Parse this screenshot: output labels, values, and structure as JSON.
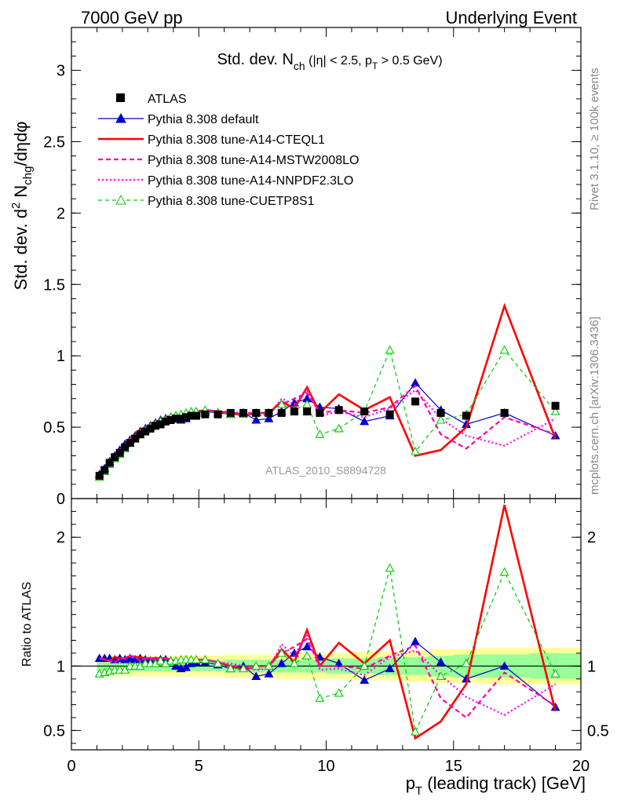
{
  "header": {
    "left": "7000 GeV pp",
    "right": "Underlying Event"
  },
  "side_labels": {
    "rivet": "Rivet 3.1.10, ≥ 100k events",
    "mcplots": "mcplots.cern.ch [arXiv:1306.3436]"
  },
  "watermark": "ATLAS_2010_S8894728",
  "chart_data": [
    {
      "panel": "main",
      "type": "line",
      "title_parts": {
        "std": "Std. dev. N",
        "sub": "ch",
        "rest": " (|η| < 2.5, p",
        "sub2": "T",
        "rest2": " > 0.5 GeV)"
      },
      "ylabel_parts": {
        "a": "Std. dev. d",
        "sup": "2",
        "b": " N",
        "sub": "chg",
        "c": "/dηdφ"
      },
      "xlim": [
        0,
        20
      ],
      "ylim": [
        0,
        3.3
      ],
      "yticks": [
        0,
        0.5,
        1,
        1.5,
        2,
        2.5,
        3
      ],
      "ytick_labels": [
        "0",
        "0.5",
        "1",
        "1.5",
        "2",
        "2.5",
        "3"
      ],
      "legend_position": "top-left",
      "series": [
        {
          "name": "ATLAS",
          "color": "#000000",
          "style": "marker",
          "x": [
            1.1,
            1.3,
            1.5,
            1.7,
            1.9,
            2.1,
            2.3,
            2.5,
            2.7,
            2.9,
            3.1,
            3.3,
            3.5,
            3.7,
            3.9,
            4.1,
            4.3,
            4.5,
            4.7,
            4.9,
            5.25,
            5.75,
            6.25,
            6.75,
            7.25,
            7.75,
            8.25,
            8.75,
            9.25,
            9.75,
            10.5,
            11.5,
            12.5,
            13.5,
            14.5,
            15.5,
            17.0,
            19.0
          ],
          "y": [
            0.16,
            0.2,
            0.25,
            0.29,
            0.32,
            0.36,
            0.39,
            0.42,
            0.45,
            0.47,
            0.49,
            0.51,
            0.52,
            0.54,
            0.55,
            0.56,
            0.56,
            0.57,
            0.58,
            0.58,
            0.59,
            0.59,
            0.6,
            0.6,
            0.6,
            0.6,
            0.6,
            0.61,
            0.61,
            0.6,
            0.62,
            0.61,
            0.59,
            0.68,
            0.6,
            0.58,
            0.6,
            0.65
          ]
        },
        {
          "name": "Pythia 8.308 default",
          "color": "#0000cc",
          "style": "solid-triangle",
          "x": [
            1.1,
            1.3,
            1.5,
            1.7,
            1.9,
            2.1,
            2.3,
            2.5,
            2.7,
            2.9,
            3.1,
            3.3,
            3.5,
            3.7,
            3.9,
            4.1,
            4.3,
            4.5,
            4.7,
            4.9,
            5.25,
            5.75,
            6.25,
            6.75,
            7.25,
            7.75,
            8.25,
            8.75,
            9.25,
            9.75,
            10.5,
            11.5,
            12.5,
            13.5,
            14.5,
            15.5,
            17.0,
            19.0
          ],
          "y": [
            0.17,
            0.21,
            0.26,
            0.3,
            0.34,
            0.38,
            0.41,
            0.44,
            0.47,
            0.49,
            0.51,
            0.53,
            0.55,
            0.56,
            0.57,
            0.56,
            0.55,
            0.56,
            0.59,
            0.6,
            0.61,
            0.6,
            0.59,
            0.6,
            0.55,
            0.56,
            0.61,
            0.67,
            0.7,
            0.64,
            0.63,
            0.54,
            0.58,
            0.81,
            0.62,
            0.52,
            0.6,
            0.44
          ]
        },
        {
          "name": "Pythia 8.308 tune-A14-CTEQL1",
          "color": "#ff0000",
          "style": "solid-thick",
          "x": [
            1.1,
            1.3,
            1.5,
            1.7,
            1.9,
            2.1,
            2.3,
            2.5,
            2.7,
            2.9,
            3.1,
            3.3,
            3.5,
            3.7,
            3.9,
            4.1,
            4.3,
            4.5,
            4.7,
            4.9,
            5.25,
            5.75,
            6.25,
            6.75,
            7.25,
            7.75,
            8.25,
            8.75,
            9.25,
            9.75,
            10.5,
            11.5,
            12.5,
            13.5,
            14.5,
            15.5,
            17.0,
            19.0
          ],
          "y": [
            0.17,
            0.21,
            0.26,
            0.31,
            0.34,
            0.38,
            0.42,
            0.45,
            0.48,
            0.5,
            0.52,
            0.54,
            0.55,
            0.57,
            0.58,
            0.58,
            0.58,
            0.6,
            0.6,
            0.61,
            0.62,
            0.61,
            0.6,
            0.58,
            0.6,
            0.6,
            0.68,
            0.63,
            0.78,
            0.6,
            0.73,
            0.62,
            0.71,
            0.3,
            0.34,
            0.5,
            1.35,
            0.42
          ]
        },
        {
          "name": "Pythia 8.308 tune-A14-MSTW2008LO",
          "color": "#ff00aa",
          "style": "dashed",
          "x": [
            1.1,
            1.3,
            1.5,
            1.7,
            1.9,
            2.1,
            2.3,
            2.5,
            2.7,
            2.9,
            3.1,
            3.3,
            3.5,
            3.7,
            3.9,
            4.1,
            4.3,
            4.5,
            4.7,
            4.9,
            5.25,
            5.75,
            6.25,
            6.75,
            7.25,
            7.75,
            8.25,
            8.75,
            9.25,
            9.75,
            10.5,
            11.5,
            12.5,
            13.5,
            14.5,
            15.5,
            17.0,
            19.0
          ],
          "y": [
            0.17,
            0.21,
            0.26,
            0.3,
            0.34,
            0.38,
            0.42,
            0.45,
            0.47,
            0.5,
            0.52,
            0.53,
            0.55,
            0.57,
            0.58,
            0.58,
            0.58,
            0.59,
            0.6,
            0.6,
            0.62,
            0.61,
            0.6,
            0.6,
            0.6,
            0.6,
            0.66,
            0.7,
            0.74,
            0.6,
            0.62,
            0.6,
            0.64,
            0.79,
            0.45,
            0.35,
            0.57,
            0.45
          ]
        },
        {
          "name": "Pythia 8.308 tune-A14-NNPDF2.3LO",
          "color": "#ff00ff",
          "style": "dotted",
          "x": [
            1.1,
            1.3,
            1.5,
            1.7,
            1.9,
            2.1,
            2.3,
            2.5,
            2.7,
            2.9,
            3.1,
            3.3,
            3.5,
            3.7,
            3.9,
            4.1,
            4.3,
            4.5,
            4.7,
            4.9,
            5.25,
            5.75,
            6.25,
            6.75,
            7.25,
            7.75,
            8.25,
            8.75,
            9.25,
            9.75,
            10.5,
            11.5,
            12.5,
            13.5,
            14.5,
            15.5,
            17.0,
            19.0
          ],
          "y": [
            0.17,
            0.21,
            0.26,
            0.3,
            0.34,
            0.38,
            0.42,
            0.45,
            0.47,
            0.5,
            0.52,
            0.54,
            0.55,
            0.57,
            0.58,
            0.58,
            0.58,
            0.59,
            0.6,
            0.61,
            0.62,
            0.61,
            0.61,
            0.6,
            0.58,
            0.59,
            0.7,
            0.66,
            0.76,
            0.58,
            0.61,
            0.57,
            0.63,
            0.76,
            0.56,
            0.44,
            0.37,
            0.56
          ]
        },
        {
          "name": "Pythia 8.308 tune-CUETP8S1",
          "color": "#00cc00",
          "style": "dashed-open-triangle",
          "x": [
            1.1,
            1.3,
            1.5,
            1.7,
            1.9,
            2.1,
            2.3,
            2.5,
            2.7,
            2.9,
            3.1,
            3.3,
            3.5,
            3.7,
            3.9,
            4.1,
            4.3,
            4.5,
            4.7,
            4.9,
            5.25,
            5.75,
            6.25,
            6.75,
            7.25,
            7.75,
            8.25,
            8.75,
            9.25,
            9.75,
            10.5,
            11.5,
            12.5,
            13.5,
            14.5,
            15.5,
            17.0,
            19.0
          ],
          "y": [
            0.15,
            0.19,
            0.24,
            0.28,
            0.31,
            0.35,
            0.39,
            0.42,
            0.45,
            0.48,
            0.5,
            0.52,
            0.54,
            0.55,
            0.57,
            0.58,
            0.59,
            0.6,
            0.61,
            0.61,
            0.62,
            0.6,
            0.59,
            0.59,
            0.6,
            0.6,
            0.66,
            0.62,
            0.66,
            0.45,
            0.49,
            0.61,
            1.04,
            0.33,
            0.55,
            0.59,
            1.04,
            0.61
          ]
        }
      ]
    },
    {
      "panel": "ratio",
      "type": "line",
      "ylabel": "Ratio to ATLAS",
      "xlabel_parts": {
        "a": "p",
        "sub": "T",
        "b": " (leading track) [GeV]"
      },
      "xlim": [
        0,
        20
      ],
      "ylim": [
        0.35,
        2.3
      ],
      "xticks": [
        0,
        5,
        10,
        15,
        20
      ],
      "xtick_labels": [
        "0",
        "5",
        "10",
        "15",
        "20"
      ],
      "yticks": [
        0.5,
        1,
        2
      ],
      "ytick_labels": [
        "0.5",
        "1",
        "2"
      ],
      "reference_line": 1,
      "uncertainty_bands": {
        "x_edges": [
          1.0,
          4.0,
          6.0,
          8.0,
          10.0,
          11.0,
          12.0,
          13.0,
          14.0,
          15.0,
          16.0,
          18.0,
          20.0
        ],
        "stat_half_width": [
          0.04,
          0.04,
          0.05,
          0.05,
          0.06,
          0.06,
          0.07,
          0.07,
          0.08,
          0.09,
          0.09,
          0.1
        ],
        "total_half_width": [
          0.08,
          0.08,
          0.09,
          0.1,
          0.1,
          0.11,
          0.11,
          0.12,
          0.13,
          0.13,
          0.14,
          0.14
        ],
        "stat_color": "#99ff99",
        "total_color": "#ffff99"
      },
      "series": [
        {
          "name": "Pythia 8.308 default",
          "color": "#0000cc",
          "y": [
            1.06,
            1.06,
            1.06,
            1.05,
            1.06,
            1.05,
            1.06,
            1.05,
            1.06,
            1.05,
            1.04,
            1.04,
            1.05,
            1.05,
            1.04,
            1.0,
            0.98,
            0.99,
            1.02,
            1.03,
            1.03,
            1.01,
            0.98,
            1.0,
            0.92,
            0.94,
            1.02,
            1.1,
            1.15,
            1.07,
            1.02,
            0.89,
            0.98,
            1.19,
            1.03,
            0.9,
            1.0,
            0.68
          ]
        },
        {
          "name": "Pythia 8.308 tune-A14-CTEQL1",
          "color": "#ff0000",
          "y": [
            1.06,
            1.05,
            1.04,
            1.07,
            1.06,
            1.06,
            1.08,
            1.07,
            1.07,
            1.06,
            1.06,
            1.06,
            1.06,
            1.06,
            1.05,
            1.04,
            1.04,
            1.05,
            1.03,
            1.05,
            1.05,
            1.03,
            1.0,
            0.97,
            1.0,
            1.0,
            1.13,
            1.03,
            1.28,
            1.0,
            1.18,
            1.02,
            1.2,
            0.44,
            0.57,
            0.86,
            2.25,
            0.65
          ]
        },
        {
          "name": "Pythia 8.308 tune-A14-MSTW2008LO",
          "color": "#ff00aa",
          "y": [
            1.06,
            1.05,
            1.04,
            1.03,
            1.06,
            1.06,
            1.08,
            1.07,
            1.04,
            1.06,
            1.06,
            1.04,
            1.06,
            1.06,
            1.05,
            1.04,
            1.04,
            1.04,
            1.03,
            1.03,
            1.05,
            1.03,
            1.0,
            1.0,
            1.0,
            1.0,
            1.1,
            1.15,
            1.21,
            1.0,
            1.0,
            0.98,
            1.08,
            1.16,
            0.75,
            0.6,
            0.95,
            0.69
          ]
        },
        {
          "name": "Pythia 8.308 tune-A14-NNPDF2.3LO",
          "color": "#ff00ff",
          "y": [
            1.06,
            1.05,
            1.04,
            1.03,
            1.06,
            1.06,
            1.08,
            1.07,
            1.04,
            1.06,
            1.06,
            1.06,
            1.06,
            1.06,
            1.05,
            1.04,
            1.04,
            1.04,
            1.03,
            1.05,
            1.05,
            1.03,
            1.02,
            1.0,
            0.97,
            0.98,
            1.17,
            1.08,
            1.25,
            0.97,
            0.98,
            0.93,
            1.07,
            1.12,
            0.93,
            0.76,
            0.62,
            0.86
          ]
        },
        {
          "name": "Pythia 8.308 tune-CUETP8S1",
          "color": "#00cc00",
          "y": [
            0.94,
            0.95,
            0.96,
            0.97,
            0.97,
            0.97,
            1.0,
            1.0,
            1.0,
            1.02,
            1.02,
            1.02,
            1.04,
            1.02,
            1.04,
            1.04,
            1.05,
            1.05,
            1.05,
            1.05,
            1.05,
            1.02,
            0.98,
            0.98,
            1.0,
            1.0,
            1.1,
            1.02,
            1.08,
            0.75,
            0.79,
            1.0,
            1.76,
            0.49,
            0.92,
            1.02,
            1.73,
            0.94
          ]
        }
      ]
    }
  ]
}
